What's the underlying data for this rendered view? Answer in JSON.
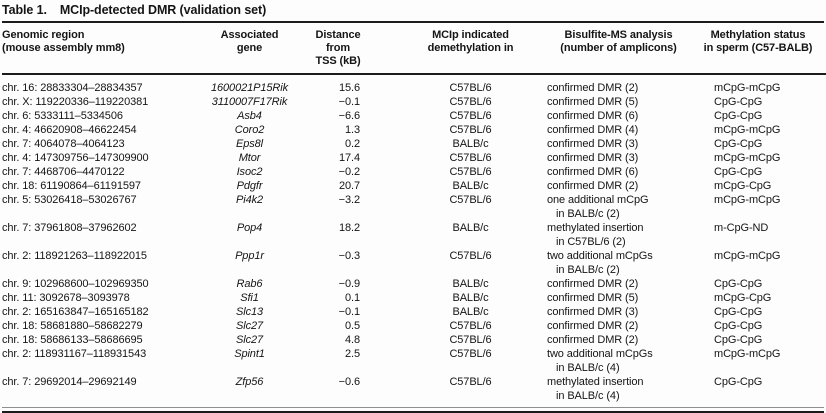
{
  "title": {
    "label": "Table 1.",
    "caption": "MCIp-detected DMR (validation set)"
  },
  "colors": {
    "text": "#151515",
    "rule": "#1c1c1c",
    "background": "#fdfdfd"
  },
  "table": {
    "headers": [
      {
        "line1": "Genomic region",
        "line2": "(mouse assembly mm8)"
      },
      {
        "line1": "Associated",
        "line2": "gene"
      },
      {
        "line1": "Distance from",
        "line2": "TSS (kB)"
      },
      {
        "line1": "MCIp indicated",
        "line2": "demethylation in"
      },
      {
        "line1": "Bisulfite-MS analysis",
        "line2": "(number of amplicons)"
      },
      {
        "line1": "Methylation status",
        "line2": "in sperm (C57-BALB)"
      }
    ],
    "rows": [
      {
        "region": "chr. 16: 28833304–28834357",
        "gene": "1600021P15Rik",
        "distance": "15.6",
        "mcip": "C57BL/6",
        "bisulfite": "confirmed DMR (2)",
        "bisulfite2": "",
        "status": "mCpG-mCpG"
      },
      {
        "region": "chr. X: 119220336–119220381",
        "gene": "3110007F17Rik",
        "distance": "−0.1",
        "mcip": "C57BL/6",
        "bisulfite": "confirmed DMR (5)",
        "bisulfite2": "",
        "status": "CpG-CpG"
      },
      {
        "region": "chr. 6: 5333111–5334506",
        "gene": "Asb4",
        "distance": "−6.6",
        "mcip": "C57BL/6",
        "bisulfite": "confirmed DMR (6)",
        "bisulfite2": "",
        "status": "CpG-CpG"
      },
      {
        "region": "chr. 4: 46620908–46622454",
        "gene": "Coro2",
        "distance": "1.3",
        "mcip": "C57BL/6",
        "bisulfite": "confirmed DMR (4)",
        "bisulfite2": "",
        "status": "mCpG-mCpG"
      },
      {
        "region": "chr. 7: 4064078–4064123",
        "gene": "Eps8l",
        "distance": "0.2",
        "mcip": "BALB/c",
        "bisulfite": "confirmed DMR (3)",
        "bisulfite2": "",
        "status": "CpG-CpG"
      },
      {
        "region": "chr. 4: 147309756–147309900",
        "gene": "Mtor",
        "distance": "17.4",
        "mcip": "C57BL/6",
        "bisulfite": "confirmed DMR (3)",
        "bisulfite2": "",
        "status": "mCpG-mCpG"
      },
      {
        "region": "chr. 7: 4468706–4470122",
        "gene": "Isoc2",
        "distance": "−0.2",
        "mcip": "C57BL/6",
        "bisulfite": "confirmed DMR (6)",
        "bisulfite2": "",
        "status": "CpG-CpG"
      },
      {
        "region": "chr. 18: 61190864–61191597",
        "gene": "Pdgfr",
        "distance": "20.7",
        "mcip": "BALB/c",
        "bisulfite": "confirmed DMR (2)",
        "bisulfite2": "",
        "status": "mCpG-CpG"
      },
      {
        "region": "chr. 5: 53026418–53026767",
        "gene": "Pi4k2",
        "distance": "−3.2",
        "mcip": "C57BL/6",
        "bisulfite": "one additional mCpG",
        "bisulfite2": "in BALB/c (2)",
        "status": "mCpG-mCpG"
      },
      {
        "region": "chr. 7: 37961808–37962602",
        "gene": "Pop4",
        "distance": "18.2",
        "mcip": "BALB/c",
        "bisulfite": "methylated insertion",
        "bisulfite2": "in C57BL/6 (2)",
        "status": "m-CpG-ND"
      },
      {
        "region": "chr. 2: 118921263–118922015",
        "gene": "Ppp1r",
        "distance": "−0.3",
        "mcip": "C57BL/6",
        "bisulfite": "two additional mCpGs",
        "bisulfite2": "in BALB/c (2)",
        "status": "mCpG-mCpG"
      },
      {
        "region": "chr. 9: 102968600–102969350",
        "gene": "Rab6",
        "distance": "−0.9",
        "mcip": "BALB/c",
        "bisulfite": "confirmed DMR (2)",
        "bisulfite2": "",
        "status": "CpG-CpG"
      },
      {
        "region": "chr. 11: 3092678–3093978",
        "gene": "Sfi1",
        "distance": "0.1",
        "mcip": "BALB/c",
        "bisulfite": "confirmed DMR (5)",
        "bisulfite2": "",
        "status": "mCpG-CpG"
      },
      {
        "region": "chr. 2: 165163847–165165182",
        "gene": "Slc13",
        "distance": "−0.1",
        "mcip": "BALB/c",
        "bisulfite": "confirmed DMR (3)",
        "bisulfite2": "",
        "status": "CpG-CpG"
      },
      {
        "region": "chr. 18: 58681880–58682279",
        "gene": "Slc27",
        "distance": "0.5",
        "mcip": "C57BL/6",
        "bisulfite": "confirmed DMR (2)",
        "bisulfite2": "",
        "status": "CpG-CpG"
      },
      {
        "region": "chr. 18: 58686133–58686695",
        "gene": "Slc27",
        "distance": "4.8",
        "mcip": "C57BL/6",
        "bisulfite": "confirmed DMR (2)",
        "bisulfite2": "",
        "status": "CpG-CpG"
      },
      {
        "region": "chr. 2: 118931167–118931543",
        "gene": "Spint1",
        "distance": "2.5",
        "mcip": "C57BL/6",
        "bisulfite": "two additional mCpGs",
        "bisulfite2": "in BALB/c (4)",
        "status": "mCpG-mCpG"
      },
      {
        "region": "chr. 7: 29692014–29692149",
        "gene": "Zfp56",
        "distance": "−0.6",
        "mcip": "C57BL/6",
        "bisulfite": "methylated insertion",
        "bisulfite2": "in BALB/c (4)",
        "status": "CpG-CpG"
      }
    ]
  }
}
